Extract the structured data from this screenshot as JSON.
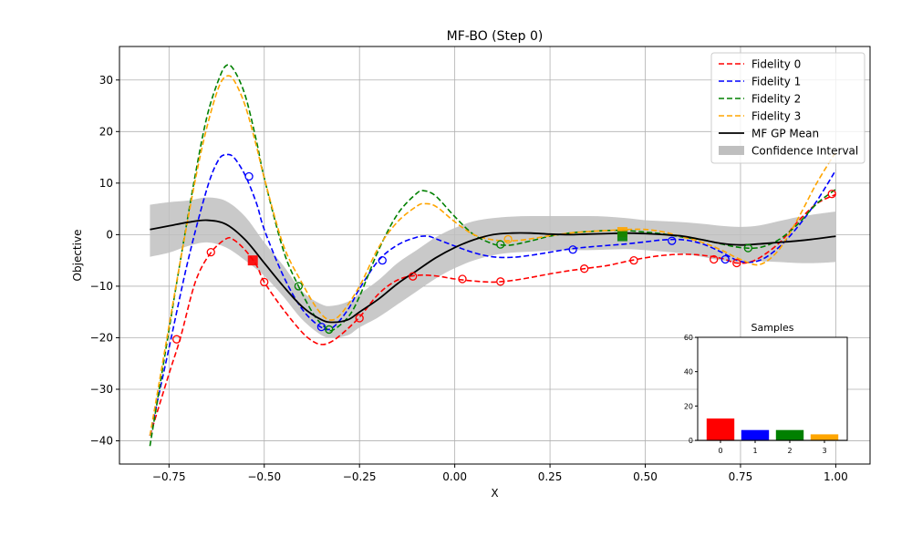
{
  "chart_data": [
    {
      "type": "line",
      "title": "MF-BO (Step 0)",
      "xlabel": "X",
      "ylabel": "Objective",
      "xlim": [
        -0.88,
        1.09
      ],
      "ylim": [
        -44.5,
        36.5
      ],
      "xticks": [
        -0.75,
        -0.5,
        -0.25,
        0.0,
        0.25,
        0.5,
        0.75,
        1.0
      ],
      "xtick_labels": [
        "−0.75",
        "−0.50",
        "−0.25",
        "0.00",
        "0.25",
        "0.50",
        "0.75",
        "1.00"
      ],
      "yticks": [
        -40,
        -30,
        -20,
        -10,
        0,
        10,
        20,
        30
      ],
      "ytick_labels": [
        "−40",
        "−30",
        "−20",
        "−10",
        "0",
        "10",
        "20",
        "30"
      ],
      "grid": true,
      "legend_position": "top-right",
      "series": [
        {
          "name": "Fidelity 0",
          "color": "#ff0000",
          "style": "dashed",
          "x": [
            -0.8,
            -0.75,
            -0.72,
            -0.68,
            -0.64,
            -0.6,
            -0.58,
            -0.55,
            -0.52,
            -0.5,
            -0.45,
            -0.4,
            -0.37,
            -0.35,
            -0.33,
            -0.3,
            -0.25,
            -0.2,
            -0.15,
            -0.1,
            -0.05,
            0.0,
            0.05,
            0.1,
            0.15,
            0.2,
            0.25,
            0.3,
            0.35,
            0.4,
            0.45,
            0.5,
            0.55,
            0.6,
            0.65,
            0.7,
            0.74,
            0.78,
            0.82,
            0.86,
            0.9,
            0.95,
            1.0
          ],
          "y": [
            -39.0,
            -27.0,
            -20.0,
            -9.0,
            -3.5,
            -0.8,
            -1.0,
            -3.0,
            -6.0,
            -9.2,
            -14.5,
            -19.0,
            -20.8,
            -21.3,
            -21.0,
            -19.5,
            -16.0,
            -11.5,
            -8.8,
            -7.9,
            -8.0,
            -8.6,
            -9.0,
            -9.2,
            -8.9,
            -8.3,
            -7.6,
            -7.0,
            -6.5,
            -6.0,
            -5.2,
            -4.5,
            -4.0,
            -3.8,
            -4.0,
            -4.6,
            -5.5,
            -5.2,
            -3.5,
            -1.0,
            2.5,
            6.0,
            7.8
          ]
        },
        {
          "name": "Fidelity 1",
          "color": "#0000ff",
          "style": "dashed",
          "x": [
            -0.8,
            -0.75,
            -0.7,
            -0.65,
            -0.62,
            -0.6,
            -0.58,
            -0.55,
            -0.52,
            -0.5,
            -0.45,
            -0.4,
            -0.35,
            -0.32,
            -0.28,
            -0.25,
            -0.2,
            -0.15,
            -0.1,
            -0.07,
            -0.05,
            0.0,
            0.05,
            0.1,
            0.15,
            0.2,
            0.25,
            0.3,
            0.35,
            0.4,
            0.45,
            0.5,
            0.55,
            0.6,
            0.65,
            0.7,
            0.75,
            0.8,
            0.85,
            0.9,
            0.95,
            1.0
          ],
          "y": [
            -39.0,
            -22.0,
            -5.0,
            9.0,
            14.5,
            15.5,
            15.0,
            11.5,
            6.0,
            1.0,
            -8.0,
            -14.5,
            -18.0,
            -18.0,
            -14.5,
            -10.5,
            -5.0,
            -2.0,
            -0.5,
            -0.3,
            -0.8,
            -2.2,
            -3.5,
            -4.3,
            -4.4,
            -4.0,
            -3.4,
            -2.8,
            -2.4,
            -2.1,
            -1.8,
            -1.4,
            -1.0,
            -1.0,
            -1.8,
            -3.4,
            -5.2,
            -5.0,
            -2.5,
            1.5,
            6.5,
            12.5
          ]
        },
        {
          "name": "Fidelity 2",
          "color": "#008000",
          "style": "dashed",
          "x": [
            -0.8,
            -0.76,
            -0.72,
            -0.68,
            -0.65,
            -0.62,
            -0.6,
            -0.58,
            -0.55,
            -0.52,
            -0.5,
            -0.45,
            -0.41,
            -0.37,
            -0.34,
            -0.32,
            -0.28,
            -0.25,
            -0.2,
            -0.15,
            -0.1,
            -0.08,
            -0.05,
            0.0,
            0.05,
            0.1,
            0.12,
            0.15,
            0.2,
            0.25,
            0.3,
            0.35,
            0.4,
            0.45,
            0.5,
            0.55,
            0.6,
            0.65,
            0.7,
            0.75,
            0.8,
            0.85,
            0.9,
            0.95,
            1.0
          ],
          "y": [
            -41.0,
            -23.0,
            -5.0,
            12.0,
            23.0,
            30.0,
            32.8,
            32.0,
            27.0,
            18.0,
            11.0,
            -3.0,
            -10.0,
            -15.5,
            -18.0,
            -18.5,
            -16.0,
            -12.0,
            -3.0,
            4.0,
            8.0,
            8.5,
            7.5,
            3.5,
            0.0,
            -1.8,
            -2.0,
            -2.0,
            -1.2,
            -0.3,
            0.3,
            0.6,
            0.8,
            0.8,
            0.5,
            0.1,
            -0.5,
            -1.0,
            -1.8,
            -2.5,
            -2.5,
            -1.0,
            2.0,
            6.0,
            8.8
          ]
        },
        {
          "name": "Fidelity 3",
          "color": "#ffa500",
          "style": "dashed",
          "x": [
            -0.8,
            -0.76,
            -0.72,
            -0.68,
            -0.65,
            -0.62,
            -0.6,
            -0.58,
            -0.55,
            -0.52,
            -0.5,
            -0.45,
            -0.4,
            -0.36,
            -0.33,
            -0.3,
            -0.25,
            -0.2,
            -0.15,
            -0.1,
            -0.08,
            -0.05,
            0.0,
            0.05,
            0.1,
            0.15,
            0.2,
            0.25,
            0.3,
            0.35,
            0.4,
            0.45,
            0.5,
            0.55,
            0.6,
            0.65,
            0.7,
            0.75,
            0.8,
            0.85,
            0.9,
            0.95,
            1.0
          ],
          "y": [
            -39.0,
            -22.0,
            -5.0,
            11.0,
            21.0,
            28.5,
            30.7,
            30.0,
            25.0,
            17.0,
            11.0,
            -2.0,
            -9.5,
            -14.5,
            -16.5,
            -15.5,
            -10.0,
            -2.5,
            2.5,
            5.5,
            6.0,
            5.5,
            2.5,
            0.0,
            -1.0,
            -1.2,
            -0.8,
            -0.2,
            0.3,
            0.6,
            0.8,
            1.0,
            1.0,
            0.5,
            -0.5,
            -1.5,
            -3.0,
            -4.8,
            -5.8,
            -3.0,
            3.0,
            10.0,
            16.0
          ]
        },
        {
          "name": "MF GP Mean",
          "color": "#000000",
          "style": "solid",
          "x": [
            -0.8,
            -0.75,
            -0.7,
            -0.65,
            -0.6,
            -0.55,
            -0.5,
            -0.45,
            -0.4,
            -0.35,
            -0.32,
            -0.28,
            -0.25,
            -0.2,
            -0.15,
            -0.1,
            -0.05,
            0.0,
            0.05,
            0.1,
            0.15,
            0.2,
            0.25,
            0.3,
            0.35,
            0.4,
            0.45,
            0.5,
            0.55,
            0.6,
            0.65,
            0.7,
            0.75,
            0.8,
            0.85,
            0.9,
            0.95,
            1.0
          ],
          "y": [
            1.0,
            1.7,
            2.4,
            2.8,
            2.0,
            -1.0,
            -5.5,
            -10.0,
            -14.0,
            -16.5,
            -17.0,
            -16.5,
            -15.0,
            -12.5,
            -9.5,
            -7.0,
            -4.5,
            -2.5,
            -1.0,
            0.0,
            0.3,
            0.3,
            0.1,
            0.0,
            0.1,
            0.2,
            0.3,
            0.2,
            0.0,
            -0.3,
            -1.0,
            -1.7,
            -2.0,
            -1.8,
            -1.5,
            -1.2,
            -0.8,
            -0.3
          ]
        }
      ],
      "confidence_interval": {
        "name": "Confidence Interval",
        "color": "#bfbfbf",
        "x": [
          -0.8,
          -0.75,
          -0.7,
          -0.65,
          -0.6,
          -0.55,
          -0.5,
          -0.45,
          -0.4,
          -0.35,
          -0.32,
          -0.28,
          -0.25,
          -0.2,
          -0.15,
          -0.1,
          -0.05,
          0.0,
          0.05,
          0.1,
          0.15,
          0.2,
          0.25,
          0.3,
          0.35,
          0.4,
          0.45,
          0.5,
          0.55,
          0.6,
          0.65,
          0.7,
          0.75,
          0.8,
          0.85,
          0.9,
          0.95,
          1.0
        ],
        "lower": [
          -4.3,
          -3.5,
          -2.2,
          -1.5,
          -2.5,
          -5.0,
          -8.0,
          -12.0,
          -16.5,
          -19.5,
          -20.0,
          -19.5,
          -18.0,
          -16.0,
          -13.5,
          -11.0,
          -8.5,
          -6.5,
          -5.0,
          -4.0,
          -3.5,
          -3.3,
          -3.1,
          -3.0,
          -3.0,
          -2.9,
          -2.8,
          -3.0,
          -3.3,
          -3.7,
          -4.3,
          -5.0,
          -5.3,
          -5.2,
          -5.3,
          -5.5,
          -5.5,
          -5.3
        ],
        "upper": [
          5.8,
          6.3,
          6.6,
          7.2,
          6.5,
          3.5,
          -1.5,
          -6.0,
          -11.0,
          -13.5,
          -13.8,
          -13.0,
          -11.5,
          -8.8,
          -5.5,
          -3.0,
          -0.5,
          1.3,
          2.6,
          3.2,
          3.5,
          3.6,
          3.6,
          3.6,
          3.6,
          3.5,
          3.2,
          2.8,
          2.6,
          2.4,
          2.1,
          1.7,
          1.5,
          1.8,
          2.6,
          3.4,
          4.0,
          4.5
        ]
      },
      "observations": [
        {
          "fidelity": 0,
          "color": "#ff0000",
          "x": [
            -0.73,
            -0.64,
            -0.5,
            -0.25,
            -0.11,
            0.02,
            0.12,
            0.34,
            0.47,
            0.68,
            0.74,
            0.99
          ],
          "y": [
            -20.3,
            -3.4,
            -9.2,
            -16.2,
            -8.1,
            -8.6,
            -9.1,
            -6.6,
            -5.0,
            -4.8,
            -5.5,
            7.9
          ]
        },
        {
          "fidelity": 1,
          "color": "#0000ff",
          "x": [
            -0.54,
            -0.35,
            -0.19,
            0.31,
            0.57,
            0.71
          ],
          "y": [
            11.3,
            -17.9,
            -5.0,
            -2.9,
            -1.2,
            -4.8
          ]
        },
        {
          "fidelity": 2,
          "color": "#008000",
          "x": [
            -0.41,
            -0.33,
            0.12,
            0.77
          ],
          "y": [
            -10.0,
            -18.4,
            -1.9,
            -2.6
          ]
        },
        {
          "fidelity": 3,
          "color": "#ffa500",
          "x": [
            0.14
          ],
          "y": [
            -0.9
          ]
        }
      ],
      "current_points": [
        {
          "color": "#ff0000",
          "x": -0.53,
          "y": -5.0
        },
        {
          "color": "#ffa500",
          "x": 0.44,
          "y": 0.5
        },
        {
          "color": "#008000",
          "x": 0.44,
          "y": -0.3
        }
      ],
      "legend": [
        "Fidelity 0",
        "Fidelity 1",
        "Fidelity 2",
        "Fidelity 3",
        "MF GP Mean",
        "Confidence Interval"
      ]
    },
    {
      "type": "bar",
      "title": "Samples",
      "categories": [
        "0",
        "1",
        "2",
        "3"
      ],
      "values": [
        12.7,
        6,
        6,
        3.5
      ],
      "colors": [
        "#ff0000",
        "#0000ff",
        "#008000",
        "#ffa500"
      ],
      "ylim": [
        0,
        60
      ],
      "yticks": [
        0,
        20,
        40,
        60
      ],
      "ytick_labels": [
        "0",
        "20",
        "40",
        "60"
      ]
    }
  ]
}
